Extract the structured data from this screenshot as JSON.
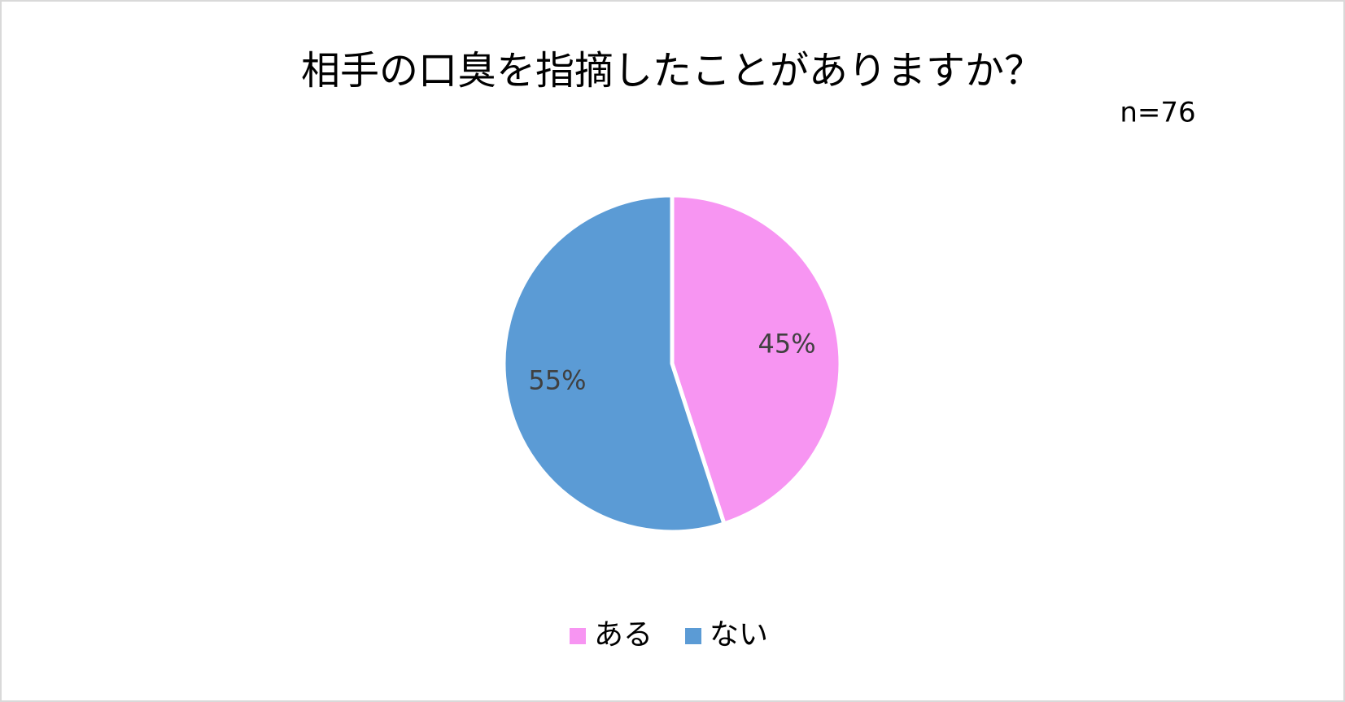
{
  "chart_data": {
    "type": "pie",
    "title": "相手の口臭を指摘したことがありますか？",
    "subtitle": "n=76",
    "categories": [
      "ある",
      "ない"
    ],
    "values": [
      45,
      55
    ],
    "value_labels": [
      "45%",
      "55%"
    ],
    "colors": [
      "#f795f2",
      "#5b9bd5"
    ],
    "legend": "bottom"
  }
}
